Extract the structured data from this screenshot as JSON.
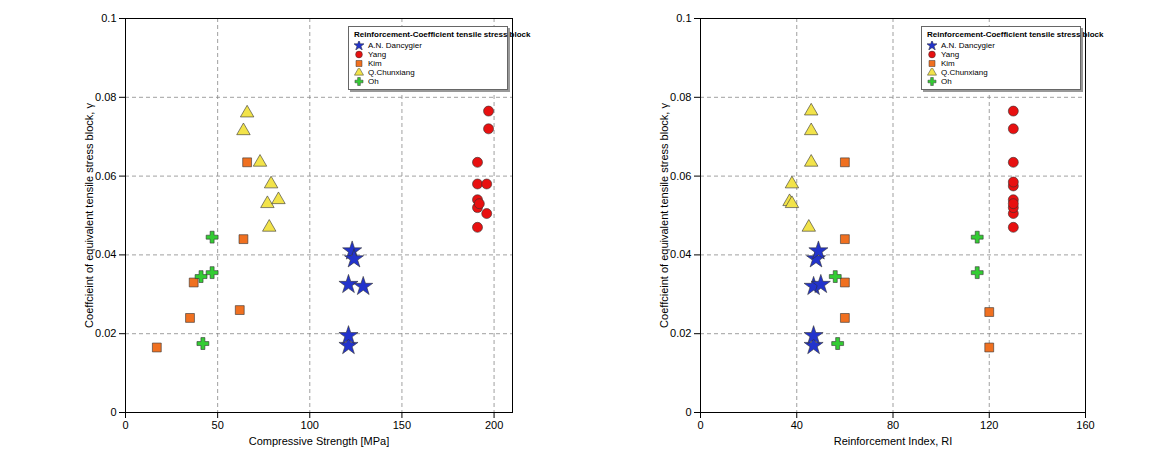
{
  "chart_data": [
    {
      "type": "scatter",
      "xlabel": "Compressive Strength [MPa]",
      "ylabel": "Coeffcieint of equivalent tensile stress block, γ",
      "legend_title": "Reinforcement-Coefficient tensile stress block",
      "xlim": [
        0,
        210
      ],
      "xticks": [
        0,
        50,
        100,
        150,
        200
      ],
      "ylim": [
        0,
        0.1
      ],
      "yticks": [
        0,
        0.02,
        0.04,
        0.06,
        0.08,
        0.1
      ],
      "grid": true,
      "legend": "upper right",
      "series": [
        {
          "name": "A.N. Dancygier",
          "color": "#2233cc",
          "marker": "star",
          "x": [
            121,
            121,
            121,
            123,
            124,
            129
          ],
          "values": [
            0.017,
            0.0195,
            0.0325,
            0.041,
            0.039,
            0.032
          ]
        },
        {
          "name": "Yang",
          "color": "#e81010",
          "marker": "circle",
          "x": [
            191,
            191,
            191,
            191,
            191,
            197,
            197,
            196,
            196,
            192
          ],
          "values": [
            0.047,
            0.052,
            0.054,
            0.058,
            0.0635,
            0.0765,
            0.072,
            0.058,
            0.0505,
            0.053
          ]
        },
        {
          "name": "Kim",
          "color": "#f07020",
          "marker": "square",
          "x": [
            17,
            35,
            37,
            62,
            64,
            66
          ],
          "values": [
            0.0165,
            0.024,
            0.033,
            0.026,
            0.044,
            0.0635
          ]
        },
        {
          "name": "Q.Chunxiang",
          "color": "#f2e34a",
          "marker": "triangle",
          "x": [
            64,
            66,
            73,
            77,
            78,
            79,
            83
          ],
          "values": [
            0.0715,
            0.076,
            0.0635,
            0.053,
            0.047,
            0.058,
            0.054
          ]
        },
        {
          "name": "Oh",
          "color": "#33cc33",
          "marker": "cross",
          "x": [
            41,
            42,
            47,
            47
          ],
          "values": [
            0.0345,
            0.0175,
            0.0445,
            0.0355
          ]
        }
      ]
    },
    {
      "type": "scatter",
      "xlabel": "Reinforcement Index, RI",
      "ylabel": "Coeffcieint of equivalent tensile stress block, γ",
      "legend_title": "Reinforcement-Coefficient tensile stress block",
      "xlim": [
        0,
        160
      ],
      "xticks": [
        0,
        40,
        80,
        120,
        160
      ],
      "ylim": [
        0,
        0.1
      ],
      "yticks": [
        0,
        0.02,
        0.04,
        0.06,
        0.08,
        0.1
      ],
      "grid": true,
      "legend": "upper right",
      "series": [
        {
          "name": "A.N. Dancygier",
          "color": "#2233cc",
          "marker": "star",
          "x": [
            47,
            47,
            47,
            48,
            49,
            50
          ],
          "values": [
            0.017,
            0.0195,
            0.032,
            0.039,
            0.041,
            0.0325
          ]
        },
        {
          "name": "Yang",
          "color": "#e81010",
          "marker": "circle",
          "x": [
            130,
            130,
            130,
            130,
            130,
            130,
            130,
            130,
            130,
            130
          ],
          "values": [
            0.047,
            0.0505,
            0.052,
            0.054,
            0.0575,
            0.0585,
            0.0635,
            0.072,
            0.0765,
            0.053
          ]
        },
        {
          "name": "Kim",
          "color": "#f07020",
          "marker": "square",
          "x": [
            60,
            60,
            60,
            60,
            120,
            120
          ],
          "values": [
            0.0635,
            0.044,
            0.033,
            0.024,
            0.0255,
            0.0165
          ]
        },
        {
          "name": "Q.Chunxiang",
          "color": "#f2e34a",
          "marker": "triangle",
          "x": [
            38,
            37,
            38,
            46,
            46,
            46,
            45
          ],
          "values": [
            0.058,
            0.0535,
            0.053,
            0.0765,
            0.0715,
            0.0635,
            0.047
          ]
        },
        {
          "name": "Oh",
          "color": "#33cc33",
          "marker": "cross",
          "x": [
            56,
            57,
            115,
            115
          ],
          "values": [
            0.0345,
            0.0175,
            0.0445,
            0.0355
          ]
        }
      ]
    }
  ]
}
